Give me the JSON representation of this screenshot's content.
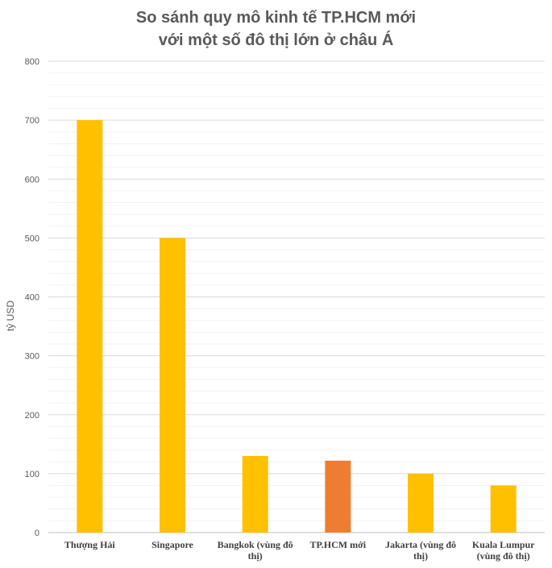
{
  "chart_data": {
    "type": "bar",
    "title_line1": "So sánh quy mô kinh tế TP.HCM mới",
    "title_line2": "với một số đô thị lớn ở châu Á",
    "ylabel": "tỷ USD",
    "ylim": [
      0,
      800
    ],
    "yticks": [
      0,
      100,
      200,
      300,
      400,
      500,
      600,
      700,
      800
    ],
    "categories": [
      [
        "Thượng Hải"
      ],
      [
        "Singapore"
      ],
      [
        "Bangkok (vùng đô",
        "thị)"
      ],
      [
        "TP.HCM mới"
      ],
      [
        "Jakarta (vùng đô",
        "thị)"
      ],
      [
        "Kuala Lumpur",
        "(vùng đô thị)"
      ]
    ],
    "values": [
      700,
      500,
      130,
      122,
      100,
      80
    ],
    "colors": [
      "#FFC000",
      "#FFC000",
      "#FFC000",
      "#ED7D31",
      "#FFC000",
      "#FFC000"
    ],
    "grid": true,
    "legend": "none"
  }
}
